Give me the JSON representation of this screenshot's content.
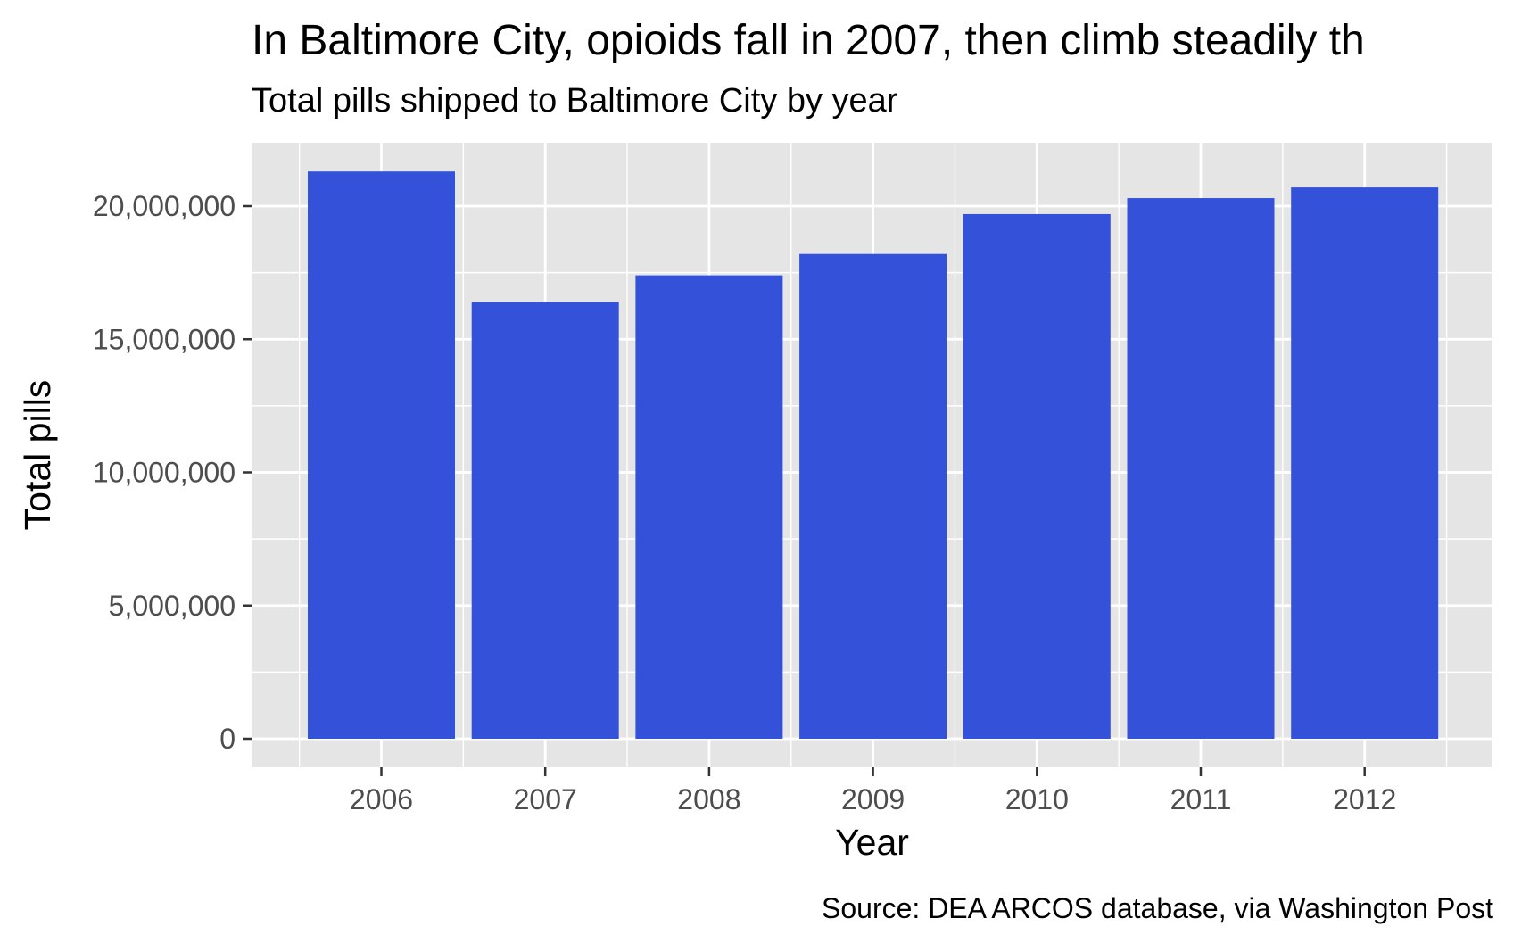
{
  "chart_data": {
    "type": "bar",
    "title": "In Baltimore City, opioids fall in 2007, then climb steadily th",
    "subtitle": "Total pills shipped to Baltimore City by year",
    "caption": "Source: DEA ARCOS database, via Washington Post",
    "xlabel": "Year",
    "ylabel": "Total pills",
    "categories": [
      "2006",
      "2007",
      "2008",
      "2009",
      "2010",
      "2011",
      "2012"
    ],
    "values": [
      21300000,
      16400000,
      17400000,
      18200000,
      19700000,
      20300000,
      20700000
    ],
    "ylim": [
      0,
      22500000
    ],
    "yticks": [
      0,
      5000000,
      10000000,
      15000000,
      20000000
    ],
    "ytick_labels": [
      "0",
      "5,000,000",
      "10,000,000",
      "15,000,000",
      "20,000,000"
    ],
    "grid": true,
    "colors": {
      "bar": "#3451d9",
      "panel": "#e5e5e5",
      "grid": "#ffffff"
    }
  }
}
